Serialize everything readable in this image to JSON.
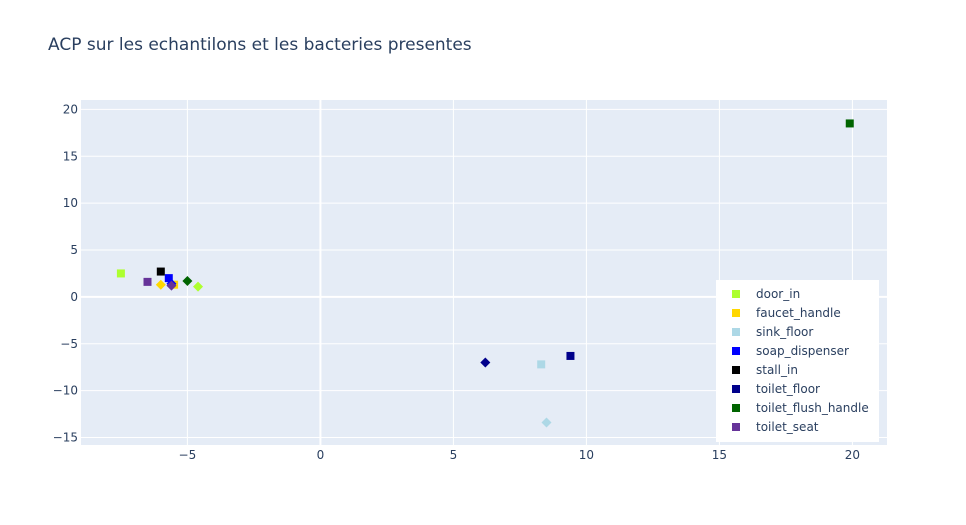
{
  "chart_data": {
    "type": "scatter",
    "title": "ACP sur les echantilons et les bacteries presentes",
    "xlabel": "",
    "ylabel": "",
    "xlim": [
      -9,
      21.3
    ],
    "ylim": [
      -15.8,
      21
    ],
    "x_ticks": [
      -5,
      0,
      5,
      10,
      15,
      20
    ],
    "x_tick_labels": [
      "−5",
      "0",
      "5",
      "10",
      "15",
      "20"
    ],
    "y_ticks": [
      -15,
      -10,
      -5,
      0,
      5,
      10,
      15,
      20
    ],
    "y_tick_labels": [
      "−15",
      "−10",
      "−5",
      "0",
      "5",
      "10",
      "15",
      "20"
    ],
    "grid": true,
    "legend_position": "bottom-right",
    "background": "#e5ecf6",
    "series": [
      {
        "name": "door_in",
        "color": "#adff2f",
        "points": [
          {
            "x": -7.5,
            "y": 2.5,
            "marker": "square"
          },
          {
            "x": -4.6,
            "y": 1.1,
            "marker": "diamond"
          }
        ]
      },
      {
        "name": "faucet_handle",
        "color": "#ffd700",
        "points": [
          {
            "x": -5.5,
            "y": 1.3,
            "marker": "square"
          },
          {
            "x": -6.0,
            "y": 1.3,
            "marker": "diamond"
          }
        ]
      },
      {
        "name": "sink_floor",
        "color": "#add8e6",
        "points": [
          {
            "x": 8.3,
            "y": -7.2,
            "marker": "square"
          },
          {
            "x": 8.5,
            "y": -13.4,
            "marker": "diamond"
          }
        ]
      },
      {
        "name": "soap_dispenser",
        "color": "#0000ff",
        "points": [
          {
            "x": -5.7,
            "y": 2.0,
            "marker": "square"
          },
          {
            "x": -5.6,
            "y": 1.4,
            "marker": "diamond"
          }
        ]
      },
      {
        "name": "stall_in",
        "color": "#000000",
        "points": [
          {
            "x": -6.0,
            "y": 2.7,
            "marker": "square"
          }
        ]
      },
      {
        "name": "toilet_floor",
        "color": "#00008b",
        "points": [
          {
            "x": 9.4,
            "y": -6.3,
            "marker": "square"
          },
          {
            "x": 6.2,
            "y": -7.0,
            "marker": "diamond"
          }
        ]
      },
      {
        "name": "toilet_flush_handle",
        "color": "#006400",
        "points": [
          {
            "x": 19.9,
            "y": 18.5,
            "marker": "square"
          },
          {
            "x": -5.0,
            "y": 1.7,
            "marker": "diamond"
          }
        ]
      },
      {
        "name": "toilet_seat",
        "color": "#663399",
        "points": [
          {
            "x": -6.5,
            "y": 1.6,
            "marker": "square"
          },
          {
            "x": -5.6,
            "y": 1.2,
            "marker": "diamond"
          }
        ]
      }
    ]
  }
}
